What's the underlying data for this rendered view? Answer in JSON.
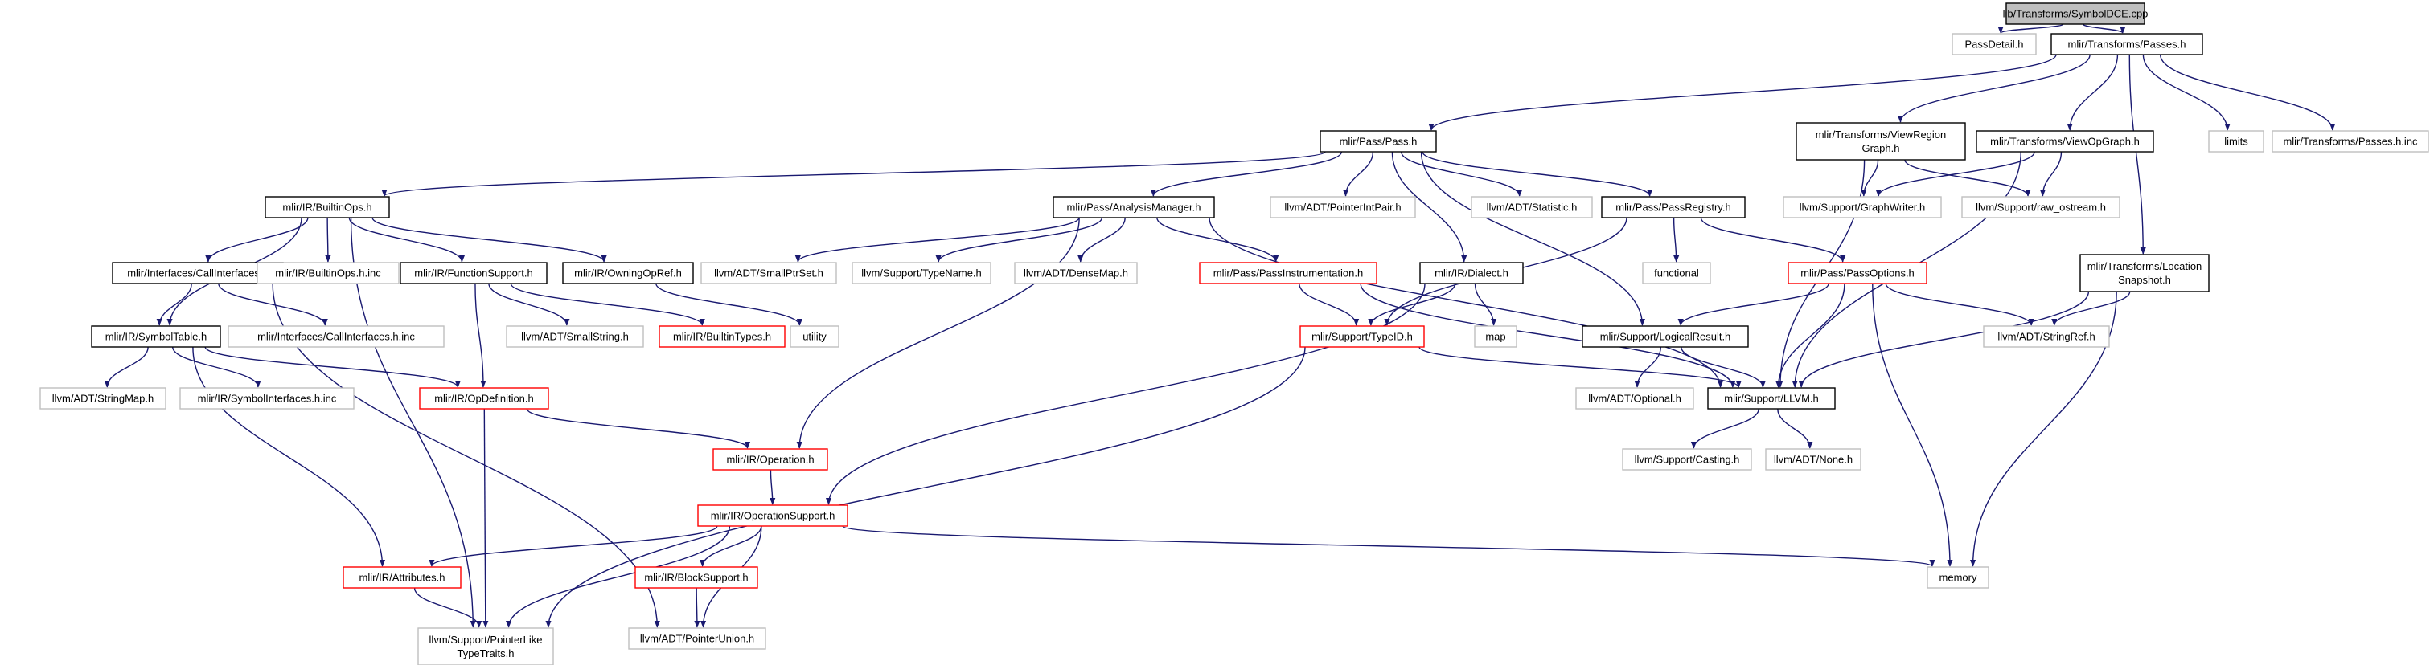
{
  "colors": {
    "edge": "#191970",
    "border_documented": "#000000",
    "border_external": "#bfbfbf",
    "border_incomplete": "#ff0000",
    "root_fill": "#bfbfbf",
    "text": "#000000"
  },
  "nodes": [
    {
      "id": "root",
      "lines": [
        "lib/Transforms/SymbolDCE.cpp"
      ],
      "kind": "root"
    },
    {
      "id": "passdetail",
      "lines": [
        "PassDetail.h"
      ],
      "kind": "external"
    },
    {
      "id": "passes",
      "lines": [
        "mlir/Transforms/Passes.h"
      ],
      "kind": "documented"
    },
    {
      "id": "pass",
      "lines": [
        "mlir/Pass/Pass.h"
      ],
      "kind": "documented"
    },
    {
      "id": "viewregion",
      "lines": [
        "mlir/Transforms/ViewRegion",
        "Graph.h"
      ],
      "kind": "documented"
    },
    {
      "id": "viewop",
      "lines": [
        "mlir/Transforms/ViewOpGraph.h"
      ],
      "kind": "documented"
    },
    {
      "id": "limits",
      "lines": [
        "limits"
      ],
      "kind": "external"
    },
    {
      "id": "passesinc",
      "lines": [
        "mlir/Transforms/Passes.h.inc"
      ],
      "kind": "external"
    },
    {
      "id": "builtinops",
      "lines": [
        "mlir/IR/BuiltinOps.h"
      ],
      "kind": "documented"
    },
    {
      "id": "analysis",
      "lines": [
        "mlir/Pass/AnalysisManager.h"
      ],
      "kind": "documented"
    },
    {
      "id": "pointerint",
      "lines": [
        "llvm/ADT/PointerIntPair.h"
      ],
      "kind": "external"
    },
    {
      "id": "statistic",
      "lines": [
        "llvm/ADT/Statistic.h"
      ],
      "kind": "external"
    },
    {
      "id": "passregistry",
      "lines": [
        "mlir/Pass/PassRegistry.h"
      ],
      "kind": "documented"
    },
    {
      "id": "graphwriter",
      "lines": [
        "llvm/Support/GraphWriter.h"
      ],
      "kind": "external"
    },
    {
      "id": "rawostream",
      "lines": [
        "llvm/Support/raw_ostream.h"
      ],
      "kind": "external"
    },
    {
      "id": "locsnap",
      "lines": [
        "mlir/Transforms/Location",
        "Snapshot.h"
      ],
      "kind": "documented"
    },
    {
      "id": "callif",
      "lines": [
        "mlir/Interfaces/CallInterfaces.h"
      ],
      "kind": "documented"
    },
    {
      "id": "builtinopsinc",
      "lines": [
        "mlir/IR/BuiltinOps.h.inc"
      ],
      "kind": "external"
    },
    {
      "id": "funcsupport",
      "lines": [
        "mlir/IR/FunctionSupport.h"
      ],
      "kind": "documented"
    },
    {
      "id": "owningop",
      "lines": [
        "mlir/IR/OwningOpRef.h"
      ],
      "kind": "documented"
    },
    {
      "id": "smallptrset",
      "lines": [
        "llvm/ADT/SmallPtrSet.h"
      ],
      "kind": "external"
    },
    {
      "id": "typename",
      "lines": [
        "llvm/Support/TypeName.h"
      ],
      "kind": "external"
    },
    {
      "id": "densemap",
      "lines": [
        "llvm/ADT/DenseMap.h"
      ],
      "kind": "external"
    },
    {
      "id": "passinstr",
      "lines": [
        "mlir/Pass/PassInstrumentation.h"
      ],
      "kind": "incomplete"
    },
    {
      "id": "dialect",
      "lines": [
        "mlir/IR/Dialect.h"
      ],
      "kind": "documented"
    },
    {
      "id": "functional",
      "lines": [
        "functional"
      ],
      "kind": "external"
    },
    {
      "id": "passoptions",
      "lines": [
        "mlir/Pass/PassOptions.h"
      ],
      "kind": "incomplete"
    },
    {
      "id": "symtable",
      "lines": [
        "mlir/IR/SymbolTable.h"
      ],
      "kind": "documented"
    },
    {
      "id": "callifinc",
      "lines": [
        "mlir/Interfaces/CallInterfaces.h.inc"
      ],
      "kind": "external"
    },
    {
      "id": "smallstring",
      "lines": [
        "llvm/ADT/SmallString.h"
      ],
      "kind": "external"
    },
    {
      "id": "builtintypes",
      "lines": [
        "mlir/IR/BuiltinTypes.h"
      ],
      "kind": "incomplete"
    },
    {
      "id": "utility",
      "lines": [
        "utility"
      ],
      "kind": "external"
    },
    {
      "id": "typeid",
      "lines": [
        "mlir/Support/TypeID.h"
      ],
      "kind": "incomplete"
    },
    {
      "id": "map",
      "lines": [
        "map"
      ],
      "kind": "external"
    },
    {
      "id": "logicalresult",
      "lines": [
        "mlir/Support/LogicalResult.h"
      ],
      "kind": "documented"
    },
    {
      "id": "stringref",
      "lines": [
        "llvm/ADT/StringRef.h"
      ],
      "kind": "external"
    },
    {
      "id": "stringmap",
      "lines": [
        "llvm/ADT/StringMap.h"
      ],
      "kind": "external"
    },
    {
      "id": "symifinc",
      "lines": [
        "mlir/IR/SymbolInterfaces.h.inc"
      ],
      "kind": "external"
    },
    {
      "id": "opdef",
      "lines": [
        "mlir/IR/OpDefinition.h"
      ],
      "kind": "incomplete"
    },
    {
      "id": "optional",
      "lines": [
        "llvm/ADT/Optional.h"
      ],
      "kind": "external"
    },
    {
      "id": "llvmh",
      "lines": [
        "mlir/Support/LLVM.h"
      ],
      "kind": "documented"
    },
    {
      "id": "operation",
      "lines": [
        "mlir/IR/Operation.h"
      ],
      "kind": "incomplete"
    },
    {
      "id": "casting",
      "lines": [
        "llvm/Support/Casting.h"
      ],
      "kind": "external"
    },
    {
      "id": "none",
      "lines": [
        "llvm/ADT/None.h"
      ],
      "kind": "external"
    },
    {
      "id": "opsupport",
      "lines": [
        "mlir/IR/OperationSupport.h"
      ],
      "kind": "incomplete"
    },
    {
      "id": "attributes",
      "lines": [
        "mlir/IR/Attributes.h"
      ],
      "kind": "incomplete"
    },
    {
      "id": "blocksupport",
      "lines": [
        "mlir/IR/BlockSupport.h"
      ],
      "kind": "incomplete"
    },
    {
      "id": "memory",
      "lines": [
        "memory"
      ],
      "kind": "external"
    },
    {
      "id": "pointerlike",
      "lines": [
        "llvm/Support/PointerLike",
        "TypeTraits.h"
      ],
      "kind": "external"
    },
    {
      "id": "pointerunion",
      "lines": [
        "llvm/ADT/PointerUnion.h"
      ],
      "kind": "external"
    }
  ],
  "edges": [
    [
      "root",
      "passdetail"
    ],
    [
      "root",
      "passes"
    ],
    [
      "passes",
      "pass"
    ],
    [
      "passes",
      "viewregion"
    ],
    [
      "passes",
      "viewop"
    ],
    [
      "passes",
      "limits"
    ],
    [
      "passes",
      "passesinc"
    ],
    [
      "passes",
      "locsnap"
    ],
    [
      "pass",
      "builtinops"
    ],
    [
      "pass",
      "analysis"
    ],
    [
      "pass",
      "pointerint"
    ],
    [
      "pass",
      "statistic"
    ],
    [
      "pass",
      "passregistry"
    ],
    [
      "pass",
      "dialect"
    ],
    [
      "pass",
      "logicalresult"
    ],
    [
      "viewregion",
      "graphwriter"
    ],
    [
      "viewregion",
      "rawostream"
    ],
    [
      "viewregion",
      "llvmh"
    ],
    [
      "viewop",
      "graphwriter"
    ],
    [
      "viewop",
      "rawostream"
    ],
    [
      "viewop",
      "llvmh"
    ],
    [
      "builtinops",
      "callif"
    ],
    [
      "builtinops",
      "builtinopsinc"
    ],
    [
      "builtinops",
      "funcsupport"
    ],
    [
      "builtinops",
      "owningop"
    ],
    [
      "builtinops",
      "symtable"
    ],
    [
      "builtinops",
      "pointerlike"
    ],
    [
      "analysis",
      "smallptrset"
    ],
    [
      "analysis",
      "typename"
    ],
    [
      "analysis",
      "densemap"
    ],
    [
      "analysis",
      "passinstr"
    ],
    [
      "analysis",
      "operation"
    ],
    [
      "analysis",
      "llvmh"
    ],
    [
      "passregistry",
      "functional"
    ],
    [
      "passregistry",
      "passoptions"
    ],
    [
      "passregistry",
      "typeid"
    ],
    [
      "locsnap",
      "stringref"
    ],
    [
      "locsnap",
      "llvmh"
    ],
    [
      "locsnap",
      "memory"
    ],
    [
      "callif",
      "symtable"
    ],
    [
      "callif",
      "callifinc"
    ],
    [
      "callif",
      "pointerunion"
    ],
    [
      "funcsupport",
      "smallstring"
    ],
    [
      "funcsupport",
      "builtintypes"
    ],
    [
      "funcsupport",
      "opdef"
    ],
    [
      "owningop",
      "utility"
    ],
    [
      "passinstr",
      "typeid"
    ],
    [
      "passinstr",
      "llvmh"
    ],
    [
      "dialect",
      "typeid"
    ],
    [
      "dialect",
      "map"
    ],
    [
      "dialect",
      "opsupport"
    ],
    [
      "passoptions",
      "logicalresult"
    ],
    [
      "passoptions",
      "stringref"
    ],
    [
      "passoptions",
      "llvmh"
    ],
    [
      "passoptions",
      "memory"
    ],
    [
      "symtable",
      "stringmap"
    ],
    [
      "symtable",
      "symifinc"
    ],
    [
      "symtable",
      "opdef"
    ],
    [
      "symtable",
      "attributes"
    ],
    [
      "typeid",
      "llvmh"
    ],
    [
      "typeid",
      "pointerlike"
    ],
    [
      "logicalresult",
      "optional"
    ],
    [
      "logicalresult",
      "llvmh"
    ],
    [
      "opdef",
      "operation"
    ],
    [
      "opdef",
      "pointerlike"
    ],
    [
      "llvmh",
      "casting"
    ],
    [
      "llvmh",
      "none"
    ],
    [
      "operation",
      "opsupport"
    ],
    [
      "opsupport",
      "attributes"
    ],
    [
      "opsupport",
      "blocksupport"
    ],
    [
      "opsupport",
      "memory"
    ],
    [
      "opsupport",
      "pointerlike"
    ],
    [
      "opsupport",
      "pointerunion"
    ],
    [
      "attributes",
      "pointerlike"
    ],
    [
      "blocksupport",
      "pointerunion"
    ]
  ]
}
